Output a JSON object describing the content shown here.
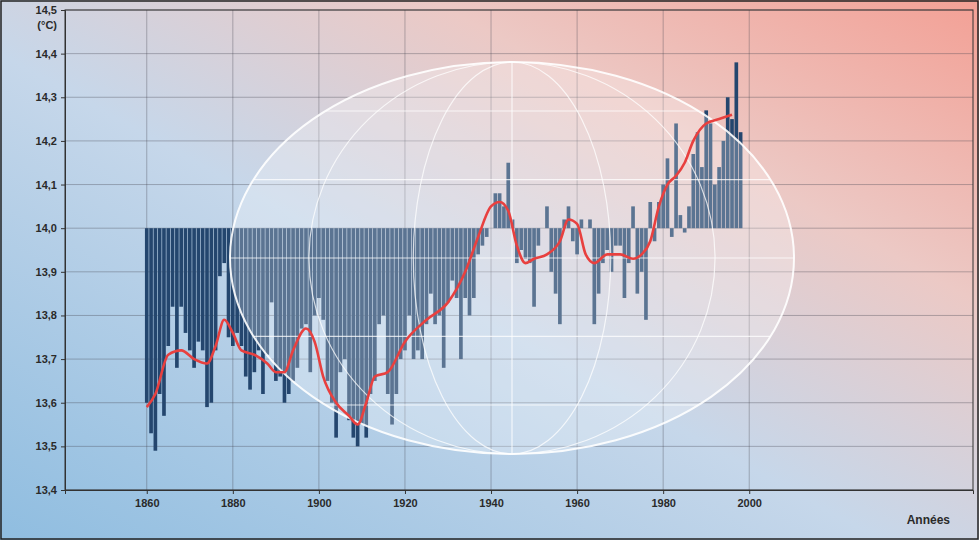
{
  "chart_data": {
    "type": "bar",
    "y_label": "(°C)",
    "x_label": "Années",
    "xlim": [
      1841,
      2052
    ],
    "xticks": [
      1860,
      1880,
      1900,
      1920,
      1940,
      1960,
      1980,
      2000
    ],
    "ylim": [
      13.4,
      14.5
    ],
    "yticks": [
      {
        "value": 13.4,
        "label": "13,4"
      },
      {
        "value": 13.5,
        "label": "13,5"
      },
      {
        "value": 13.6,
        "label": "13,6"
      },
      {
        "value": 13.7,
        "label": "13,7"
      },
      {
        "value": 13.8,
        "label": "13,8"
      },
      {
        "value": 13.9,
        "label": "13,9"
      },
      {
        "value": 14.0,
        "label": "14,0"
      },
      {
        "value": 14.1,
        "label": "14,1"
      },
      {
        "value": 14.2,
        "label": "14,2"
      },
      {
        "value": 14.3,
        "label": "14,3"
      },
      {
        "value": 14.4,
        "label": "14,4"
      },
      {
        "value": 14.5,
        "label": "14,5"
      }
    ],
    "grid": true,
    "series": [
      {
        "type": "bar",
        "color": "#24466e",
        "baseline": 14.0,
        "x": [
          1860,
          1861,
          1862,
          1863,
          1864,
          1865,
          1866,
          1867,
          1868,
          1869,
          1870,
          1871,
          1872,
          1873,
          1874,
          1875,
          1876,
          1877,
          1878,
          1879,
          1880,
          1881,
          1882,
          1883,
          1884,
          1885,
          1886,
          1887,
          1888,
          1889,
          1890,
          1891,
          1892,
          1893,
          1894,
          1895,
          1896,
          1897,
          1898,
          1899,
          1900,
          1901,
          1902,
          1903,
          1904,
          1905,
          1906,
          1907,
          1908,
          1909,
          1910,
          1911,
          1912,
          1913,
          1914,
          1915,
          1916,
          1917,
          1918,
          1919,
          1920,
          1921,
          1922,
          1923,
          1924,
          1925,
          1926,
          1927,
          1928,
          1929,
          1930,
          1931,
          1932,
          1933,
          1934,
          1935,
          1936,
          1937,
          1938,
          1939,
          1940,
          1941,
          1942,
          1943,
          1944,
          1945,
          1946,
          1947,
          1948,
          1949,
          1950,
          1951,
          1952,
          1953,
          1954,
          1955,
          1956,
          1957,
          1958,
          1959,
          1960,
          1961,
          1962,
          1963,
          1964,
          1965,
          1966,
          1967,
          1968,
          1969,
          1970,
          1971,
          1972,
          1973,
          1974,
          1975,
          1976,
          1977,
          1978,
          1979,
          1980,
          1981,
          1982,
          1983,
          1984,
          1985,
          1986,
          1987,
          1988,
          1989,
          1990,
          1991,
          1992,
          1993,
          1994,
          1995,
          1996,
          1997,
          1998
        ],
        "values": [
          13.6,
          13.53,
          13.49,
          13.62,
          13.57,
          13.73,
          13.82,
          13.68,
          13.82,
          13.76,
          13.72,
          13.68,
          13.74,
          13.72,
          13.59,
          13.6,
          13.72,
          13.89,
          13.92,
          13.75,
          13.73,
          13.76,
          13.73,
          13.66,
          13.63,
          13.67,
          13.72,
          13.62,
          13.71,
          13.83,
          13.65,
          13.66,
          13.6,
          13.62,
          13.65,
          13.68,
          13.77,
          13.78,
          13.67,
          13.8,
          13.84,
          13.79,
          13.65,
          13.6,
          13.52,
          13.67,
          13.7,
          13.56,
          13.52,
          13.5,
          13.55,
          13.52,
          13.62,
          13.65,
          13.78,
          13.8,
          13.62,
          13.55,
          13.62,
          13.7,
          13.72,
          13.8,
          13.7,
          13.72,
          13.7,
          13.78,
          13.85,
          13.78,
          13.8,
          13.68,
          13.83,
          13.88,
          13.84,
          13.7,
          13.84,
          13.8,
          13.84,
          13.94,
          13.96,
          13.98,
          14.0,
          14.08,
          14.08,
          14.05,
          14.15,
          14.02,
          13.92,
          13.95,
          13.93,
          13.92,
          13.82,
          13.96,
          14.0,
          14.05,
          13.9,
          13.85,
          13.78,
          14.02,
          14.05,
          13.97,
          13.94,
          14.02,
          14.0,
          14.02,
          13.78,
          13.85,
          13.92,
          13.95,
          13.9,
          13.96,
          13.96,
          13.84,
          13.92,
          14.05,
          13.85,
          13.9,
          13.79,
          14.06,
          13.97,
          14.06,
          14.1,
          14.16,
          13.98,
          14.24,
          14.03,
          13.99,
          14.05,
          14.17,
          14.22,
          14.14,
          14.27,
          14.24,
          14.1,
          14.14,
          14.2,
          14.3,
          14.25,
          14.38,
          14.22
        ]
      },
      {
        "type": "line",
        "color": "#e8403f",
        "x": [
          1860,
          1862,
          1865,
          1868,
          1871,
          1874,
          1876,
          1878,
          1880,
          1882,
          1885,
          1888,
          1890,
          1892,
          1894,
          1897,
          1899,
          1901,
          1904,
          1907,
          1909,
          1911,
          1913,
          1916,
          1920,
          1925,
          1930,
          1934,
          1937,
          1940,
          1942,
          1944,
          1946,
          1948,
          1950,
          1953,
          1956,
          1958,
          1960,
          1962,
          1964,
          1967,
          1970,
          1973,
          1975,
          1977,
          1979,
          1981,
          1983,
          1985,
          1987,
          1990,
          1993,
          1996
        ],
        "values": [
          13.59,
          13.62,
          13.71,
          13.72,
          13.7,
          13.69,
          13.73,
          13.79,
          13.76,
          13.72,
          13.71,
          13.69,
          13.67,
          13.67,
          13.72,
          13.77,
          13.74,
          13.66,
          13.6,
          13.57,
          13.55,
          13.6,
          13.66,
          13.67,
          13.74,
          13.79,
          13.83,
          13.9,
          13.98,
          14.05,
          14.06,
          14.04,
          13.96,
          13.92,
          13.93,
          13.94,
          13.97,
          14.02,
          14.01,
          13.94,
          13.92,
          13.94,
          13.94,
          13.93,
          13.94,
          13.97,
          14.05,
          14.1,
          14.12,
          14.15,
          14.2,
          14.24,
          14.25,
          14.26
        ]
      }
    ]
  }
}
